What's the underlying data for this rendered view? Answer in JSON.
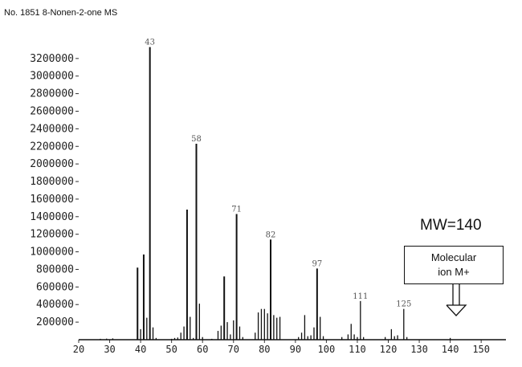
{
  "title": "No. 1851 8-Nonen-2-one MS",
  "annotation": {
    "mw_label": "MW=140",
    "callout_line1": "Molecular",
    "callout_line2": "ion M+"
  },
  "chart_data": {
    "type": "bar",
    "xlabel": "",
    "ylabel": "",
    "xlim": [
      20,
      158
    ],
    "ylim": [
      0,
      3500000
    ],
    "x_ticks": [
      20,
      30,
      40,
      50,
      60,
      70,
      80,
      90,
      100,
      110,
      120,
      130,
      140,
      150
    ],
    "y_ticks": [
      200000,
      400000,
      600000,
      800000,
      1000000,
      1200000,
      1400000,
      1600000,
      1800000,
      2000000,
      2200000,
      2400000,
      2600000,
      2800000,
      3000000,
      3200000
    ],
    "x": [
      27,
      29,
      31,
      39,
      40,
      41,
      42,
      43,
      44,
      45,
      50,
      51,
      52,
      53,
      54,
      55,
      56,
      57,
      58,
      59,
      60,
      63,
      65,
      66,
      67,
      68,
      69,
      70,
      71,
      72,
      73,
      77,
      78,
      79,
      80,
      81,
      82,
      83,
      84,
      85,
      91,
      92,
      93,
      94,
      95,
      96,
      97,
      98,
      99,
      105,
      107,
      108,
      109,
      110,
      111,
      112,
      119,
      121,
      122,
      123,
      125,
      126,
      140
    ],
    "values": [
      10000,
      12000,
      15000,
      820000,
      120000,
      970000,
      250000,
      3330000,
      140000,
      20000,
      10000,
      20000,
      25000,
      80000,
      150000,
      1480000,
      260000,
      20000,
      2230000,
      410000,
      30000,
      10000,
      100000,
      160000,
      720000,
      200000,
      60000,
      220000,
      1430000,
      150000,
      30000,
      80000,
      310000,
      350000,
      350000,
      300000,
      1140000,
      280000,
      250000,
      260000,
      30000,
      80000,
      280000,
      40000,
      50000,
      140000,
      810000,
      260000,
      40000,
      30000,
      60000,
      180000,
      60000,
      30000,
      440000,
      30000,
      30000,
      120000,
      40000,
      50000,
      350000,
      30000,
      20000
    ],
    "peak_labels": [
      {
        "x": 43,
        "text": "43"
      },
      {
        "x": 58,
        "text": "58"
      },
      {
        "x": 71,
        "text": "71"
      },
      {
        "x": 82,
        "text": "82"
      },
      {
        "x": 97,
        "text": "97"
      },
      {
        "x": 111,
        "text": "111"
      },
      {
        "x": 125,
        "text": "125"
      }
    ]
  }
}
